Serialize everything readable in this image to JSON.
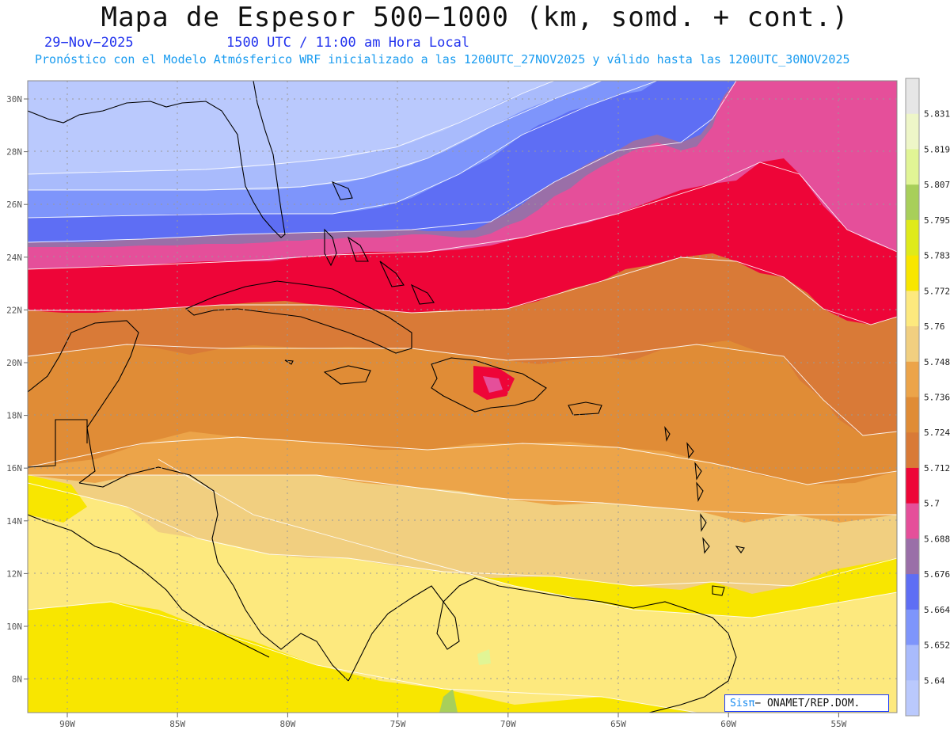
{
  "header": {
    "title": "Mapa de Espesor 500−1000 (km, somd. + cont.)",
    "date": "29−Nov−2025",
    "time": "1500 UTC / 11:00 am Hora Local",
    "model_line": "Pronóstico con el Modelo Atmósferico WRF inicializado a las 1200UTC_27NOV2025 y válido hasta las  1200UTC_30NOV2025"
  },
  "axes": {
    "lat_labels": [
      "30N",
      "28N",
      "26N",
      "24N",
      "22N",
      "20N",
      "18N",
      "16N",
      "14N",
      "12N",
      "10N",
      "8N"
    ],
    "lon_labels": [
      "90W",
      "85W",
      "80W",
      "75W",
      "70W",
      "65W",
      "60W",
      "55W"
    ]
  },
  "colorbar": {
    "labels": [
      "5.831",
      "5.819",
      "5.807",
      "5.795",
      "5.783",
      "5.772",
      "5.76",
      "5.748",
      "5.736",
      "5.724",
      "5.712",
      "5.7",
      "5.688",
      "5.676",
      "5.664",
      "5.652",
      "5.64"
    ],
    "colors": [
      "#e6e6e6",
      "#eef6c8",
      "#e1f595",
      "#a8cf5a",
      "#dfea1a",
      "#f8e600",
      "#fde97e",
      "#f1cf80",
      "#eca449",
      "#e08c36",
      "#d97a37",
      "#ee0538",
      "#e54f9a",
      "#9a6fa8",
      "#5e6ef4",
      "#7e95fb",
      "#a9bbfc",
      "#bac9fd"
    ]
  },
  "credit": {
    "brand": "Sisπ",
    "text": "− ONAMET/REP.DOM."
  },
  "colors": {
    "title": "#111111",
    "subtitle": "#2233ee",
    "model_line": "#1a9cf0"
  }
}
